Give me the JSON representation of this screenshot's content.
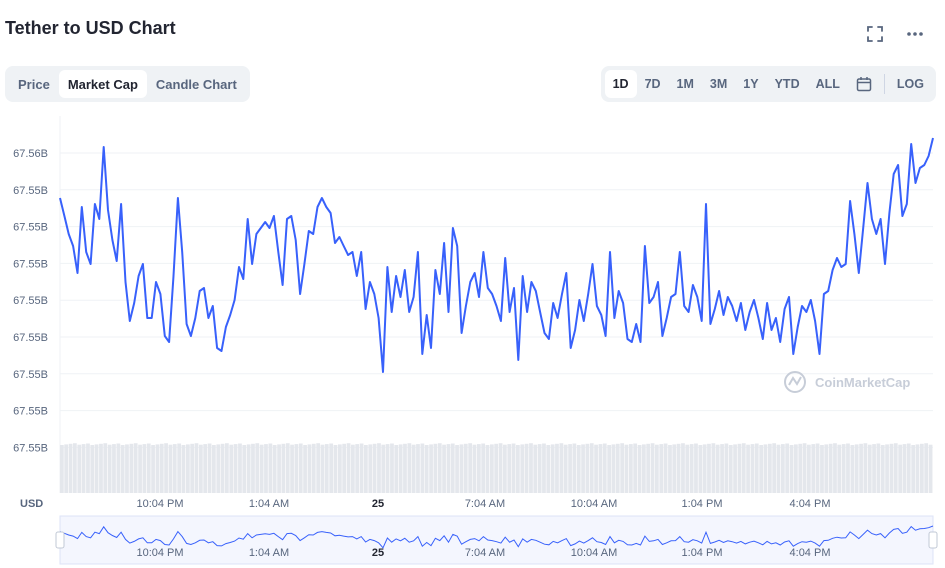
{
  "header": {
    "title": "Tether to USD Chart",
    "fullscreen_icon": "expand-icon",
    "more_icon": "more-horizontal-icon"
  },
  "tabs": [
    {
      "label": "Price",
      "active": false
    },
    {
      "label": "Market Cap",
      "active": true
    },
    {
      "label": "Candle Chart",
      "active": false
    }
  ],
  "ranges": [
    {
      "label": "1D",
      "active": true
    },
    {
      "label": "7D",
      "active": false
    },
    {
      "label": "1M",
      "active": false
    },
    {
      "label": "3M",
      "active": false
    },
    {
      "label": "1Y",
      "active": false
    },
    {
      "label": "YTD",
      "active": false
    },
    {
      "label": "ALL",
      "active": false
    }
  ],
  "calendar_icon": "calendar-icon",
  "log_label": "LOG",
  "colors": {
    "line": "#3861fb",
    "volume": "#e4e7ec",
    "grid": "#eff2f5",
    "navigator_fill": "#e8edfd"
  },
  "chart_data": {
    "type": "line",
    "currency_label": "USD",
    "watermark": "CoinMarketCap",
    "y_tick_labels": [
      "67.56B",
      "67.55B",
      "67.55B",
      "67.55B",
      "67.55B",
      "67.55B",
      "67.55B",
      "67.55B",
      "67.55B"
    ],
    "x_tick_labels": [
      {
        "label": "10:04 PM",
        "bold": false
      },
      {
        "label": "1:04 AM",
        "bold": false
      },
      {
        "label": "25",
        "bold": true
      },
      {
        "label": "7:04 AM",
        "bold": false
      },
      {
        "label": "10:04 AM",
        "bold": false
      },
      {
        "label": "1:04 PM",
        "bold": false
      },
      {
        "label": "4:04 PM",
        "bold": false
      }
    ],
    "series": [
      {
        "values": [
          0.8,
          0.74,
          0.68,
          0.64,
          0.55,
          0.77,
          0.62,
          0.58,
          0.78,
          0.73,
          0.97,
          0.76,
          0.66,
          0.59,
          0.78,
          0.52,
          0.39,
          0.45,
          0.54,
          0.58,
          0.4,
          0.4,
          0.52,
          0.48,
          0.34,
          0.32,
          0.54,
          0.8,
          0.62,
          0.38,
          0.34,
          0.4,
          0.49,
          0.5,
          0.4,
          0.44,
          0.3,
          0.29,
          0.37,
          0.41,
          0.46,
          0.57,
          0.53,
          0.73,
          0.58,
          0.68,
          0.7,
          0.72,
          0.7,
          0.74,
          0.62,
          0.51,
          0.73,
          0.74,
          0.66,
          0.48,
          0.58,
          0.69,
          0.68,
          0.77,
          0.8,
          0.77,
          0.75,
          0.65,
          0.67,
          0.64,
          0.61,
          0.62,
          0.54,
          0.62,
          0.43,
          0.52,
          0.48,
          0.4,
          0.22,
          0.57,
          0.42,
          0.54,
          0.47,
          0.56,
          0.42,
          0.47,
          0.62,
          0.28,
          0.41,
          0.3,
          0.56,
          0.48,
          0.65,
          0.42,
          0.7,
          0.64,
          0.35,
          0.44,
          0.52,
          0.55,
          0.47,
          0.62,
          0.5,
          0.48,
          0.44,
          0.39,
          0.6,
          0.42,
          0.5,
          0.26,
          0.54,
          0.42,
          0.52,
          0.49,
          0.42,
          0.35,
          0.33,
          0.45,
          0.4,
          0.48,
          0.55,
          0.3,
          0.36,
          0.46,
          0.39,
          0.48,
          0.58,
          0.44,
          0.41,
          0.34,
          0.62,
          0.4,
          0.49,
          0.45,
          0.33,
          0.32,
          0.38,
          0.32,
          0.64,
          0.45,
          0.47,
          0.52,
          0.34,
          0.4,
          0.47,
          0.48,
          0.62,
          0.44,
          0.42,
          0.51,
          0.47,
          0.39,
          0.78,
          0.38,
          0.43,
          0.49,
          0.41,
          0.47,
          0.44,
          0.39,
          0.45,
          0.36,
          0.42,
          0.46,
          0.4,
          0.33,
          0.45,
          0.36,
          0.4,
          0.32,
          0.43,
          0.47,
          0.28,
          0.37,
          0.44,
          0.42,
          0.46,
          0.39,
          0.28,
          0.48,
          0.49,
          0.56,
          0.6,
          0.57,
          0.58,
          0.79,
          0.68,
          0.55,
          0.7,
          0.85,
          0.73,
          0.68,
          0.73,
          0.58,
          0.75,
          0.88,
          0.91,
          0.74,
          0.78,
          0.98,
          0.85,
          0.9,
          0.91,
          0.94,
          1.0
        ]
      }
    ]
  }
}
